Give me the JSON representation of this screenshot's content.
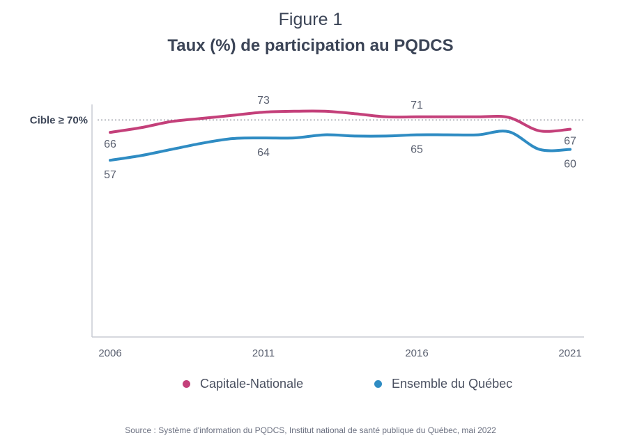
{
  "figure_label": "Figure 1",
  "source": "Source :  Système d'information du PQDCS, Institut national de santé publique du Québec, mai 2022",
  "chart_data": {
    "type": "line",
    "title": "Taux (%) de participation au PQDCS",
    "x": [
      2006,
      2007,
      2008,
      2009,
      2010,
      2011,
      2012,
      2013,
      2014,
      2015,
      2016,
      2017,
      2018,
      2019,
      2020,
      2021
    ],
    "xticks": [
      2006,
      2011,
      2016,
      2021
    ],
    "ylim": [
      0,
      75
    ],
    "grid": false,
    "legend_position": "bottom",
    "target": {
      "label": "Cible ≥ 70%",
      "value": 70
    },
    "series": [
      {
        "name": "Capitale-Nationale",
        "color": "#c4407a",
        "values": [
          66,
          67.5,
          69.5,
          70.5,
          71.5,
          72.5,
          72.8,
          72.8,
          72,
          71,
          71,
          71,
          71,
          70.8,
          66.5,
          67
        ],
        "labels": [
          {
            "x": 2006,
            "text": "66"
          },
          {
            "x": 2011,
            "text": "73"
          },
          {
            "x": 2016,
            "text": "71"
          },
          {
            "x": 2021,
            "text": "67"
          }
        ]
      },
      {
        "name": "Ensemble du Québec",
        "color": "#2f8cc3",
        "values": [
          57,
          58.5,
          60.5,
          62.5,
          64,
          64.2,
          64.2,
          65.2,
          64.8,
          64.8,
          65.2,
          65.2,
          65.2,
          66.2,
          60.5,
          60.5
        ],
        "labels": [
          {
            "x": 2006,
            "text": "57"
          },
          {
            "x": 2011,
            "text": "64"
          },
          {
            "x": 2016,
            "text": "65"
          },
          {
            "x": 2021,
            "text": "60"
          }
        ]
      }
    ]
  }
}
